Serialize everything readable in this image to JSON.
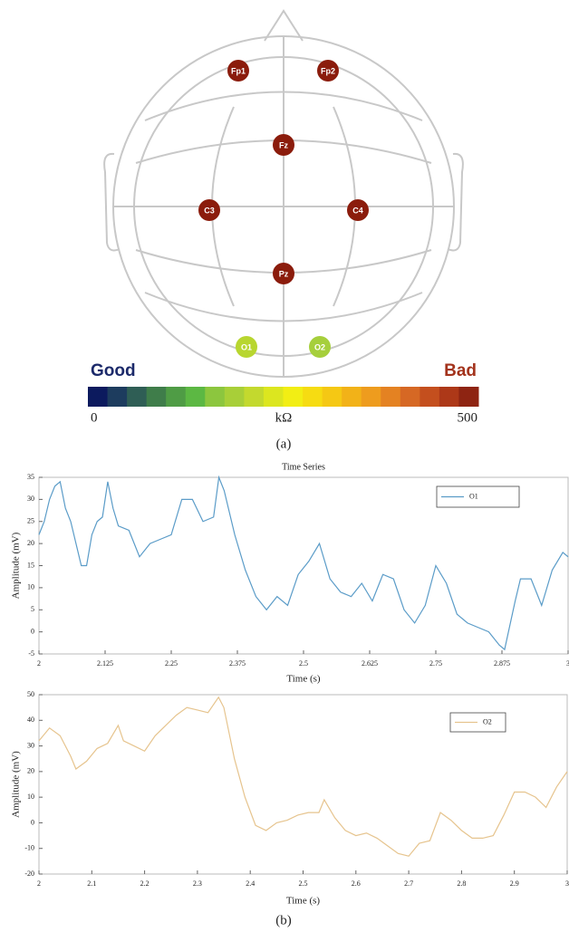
{
  "diagram": {
    "electrodes": [
      {
        "label": "Fp1",
        "color": "#8b1c0c"
      },
      {
        "label": "Fp2",
        "color": "#8b1c0c"
      },
      {
        "label": "Fz",
        "color": "#8b1c0c"
      },
      {
        "label": "C3",
        "color": "#8b1c0c"
      },
      {
        "label": "C4",
        "color": "#8b1c0c"
      },
      {
        "label": "Pz",
        "color": "#8b1c0c"
      },
      {
        "label": "O1",
        "color": "#b8d630"
      },
      {
        "label": "O2",
        "color": "#a6cf3c"
      }
    ],
    "good_label": "Good",
    "bad_label": "Bad",
    "colorbar": {
      "colors": [
        "#0c1a5e",
        "#1d3c5e",
        "#2f5e55",
        "#3f7d4a",
        "#4f9c45",
        "#5cb843",
        "#8cc63e",
        "#a8cf38",
        "#c3d92e",
        "#dce61f",
        "#f2ee14",
        "#f6dc12",
        "#f5c814",
        "#f2b218",
        "#ee9c1e",
        "#e48222",
        "#d66824",
        "#c44f1e",
        "#ad3818",
        "#8e2412"
      ],
      "min_label": "0",
      "unit_label": "kΩ",
      "max_label": "500"
    },
    "caption": "(a)"
  },
  "chart_data": [
    {
      "type": "line",
      "title": "Time Series",
      "x_label": "Time (s)",
      "y_label": "Amplitude (mV)",
      "x": [
        2.0,
        2.01,
        2.02,
        2.03,
        2.04,
        2.05,
        2.06,
        2.07,
        2.08,
        2.09,
        2.1,
        2.11,
        2.12,
        2.13,
        2.14,
        2.15,
        2.17,
        2.19,
        2.21,
        2.23,
        2.25,
        2.27,
        2.29,
        2.31,
        2.33,
        2.34,
        2.35,
        2.37,
        2.39,
        2.41,
        2.43,
        2.45,
        2.47,
        2.49,
        2.51,
        2.53,
        2.55,
        2.57,
        2.59,
        2.61,
        2.63,
        2.65,
        2.67,
        2.69,
        2.71,
        2.73,
        2.75,
        2.77,
        2.79,
        2.81,
        2.83,
        2.85,
        2.87,
        2.88,
        2.9,
        2.91,
        2.93,
        2.95,
        2.97,
        2.99,
        3.0
      ],
      "series": [
        {
          "name": "O1",
          "color": "#5b9cc8",
          "values": [
            22,
            25,
            30,
            33,
            34,
            28,
            25,
            20,
            15,
            15,
            22,
            25,
            26,
            34,
            28,
            24,
            23,
            17,
            20,
            21,
            22,
            30,
            30,
            25,
            26,
            35,
            32,
            22,
            14,
            8,
            5,
            8,
            6,
            13,
            16,
            20,
            12,
            9,
            8,
            11,
            7,
            13,
            12,
            5,
            2,
            6,
            15,
            11,
            4,
            2,
            1,
            0,
            -3,
            -4,
            7,
            12,
            12,
            6,
            14,
            18,
            17
          ]
        }
      ],
      "xlim": [
        2,
        3
      ],
      "xticks": [
        2,
        2.125,
        2.25,
        2.375,
        2.5,
        2.625,
        2.75,
        2.875,
        3
      ],
      "ylim": [
        -5,
        35
      ],
      "yticks": [
        -5,
        0,
        5,
        10,
        15,
        20,
        25,
        30,
        35
      ],
      "legend": "upper-right"
    },
    {
      "type": "line",
      "x_label": "Time (s)",
      "y_label": "Amplitude (mV)",
      "x": [
        2.0,
        2.02,
        2.04,
        2.06,
        2.07,
        2.09,
        2.11,
        2.13,
        2.15,
        2.16,
        2.18,
        2.2,
        2.22,
        2.24,
        2.26,
        2.28,
        2.3,
        2.32,
        2.34,
        2.35,
        2.37,
        2.39,
        2.41,
        2.43,
        2.45,
        2.47,
        2.49,
        2.51,
        2.53,
        2.54,
        2.56,
        2.58,
        2.6,
        2.62,
        2.64,
        2.66,
        2.68,
        2.7,
        2.72,
        2.74,
        2.76,
        2.78,
        2.8,
        2.82,
        2.84,
        2.86,
        2.88,
        2.9,
        2.92,
        2.94,
        2.96,
        2.98,
        3.0
      ],
      "series": [
        {
          "name": "O2",
          "color": "#e6c48e",
          "values": [
            32,
            37,
            34,
            26,
            21,
            24,
            29,
            31,
            38,
            32,
            30,
            28,
            34,
            38,
            42,
            45,
            44,
            43,
            49,
            45,
            25,
            10,
            -1,
            -3,
            0,
            1,
            3,
            4,
            4,
            9,
            2,
            -3,
            -5,
            -4,
            -6,
            -9,
            -12,
            -13,
            -8,
            -7,
            4,
            1,
            -3,
            -6,
            -6,
            -5,
            3,
            12,
            12,
            10,
            6,
            14,
            20
          ]
        }
      ],
      "xlim": [
        2,
        3
      ],
      "xticks": [
        2,
        2.1,
        2.2,
        2.3,
        2.4,
        2.5,
        2.6,
        2.7,
        2.8,
        2.9,
        3
      ],
      "ylim": [
        -20,
        50
      ],
      "yticks": [
        -20,
        -10,
        0,
        10,
        20,
        30,
        40,
        50
      ],
      "legend": "upper-right"
    }
  ],
  "caption_b": "(b)"
}
